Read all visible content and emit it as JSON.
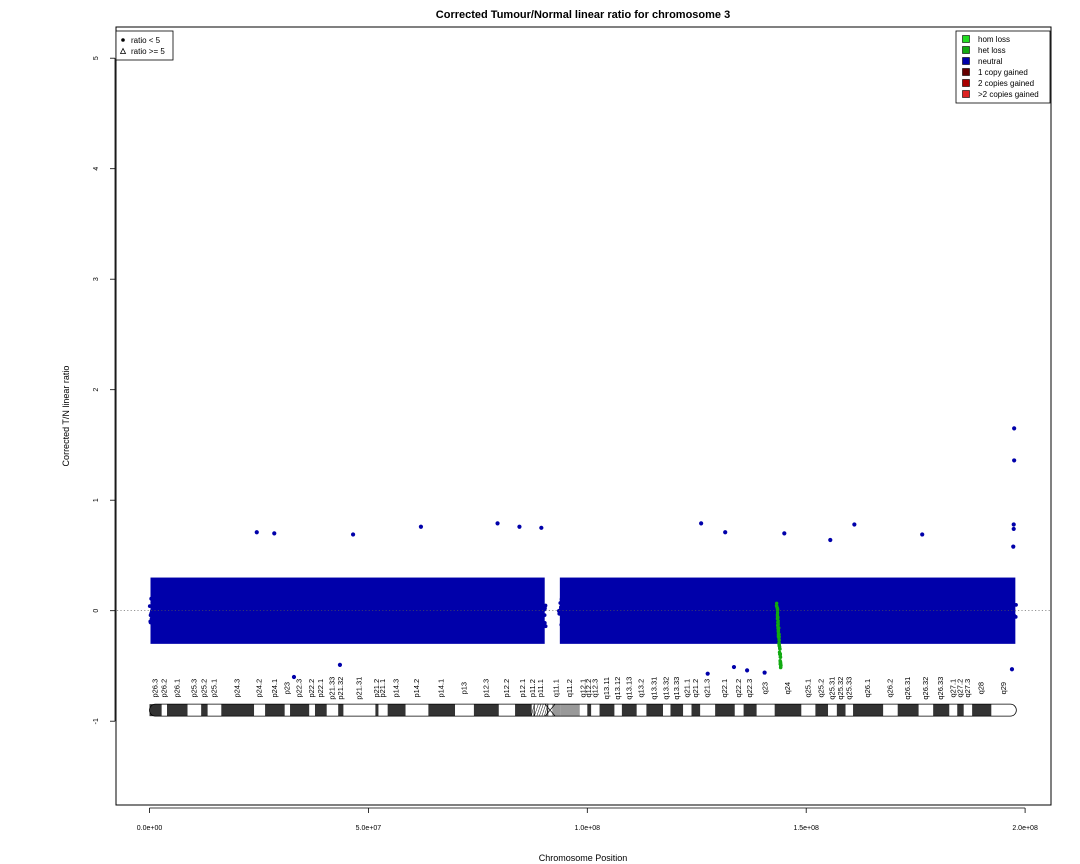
{
  "chart_data": {
    "type": "scatter",
    "title": "Corrected Tumour/Normal linear ratio for chromosome  3",
    "xlabel": "Chromosome Position",
    "ylabel": "Corrected T/N linear ratio",
    "xlim": [
      0,
      205000000
    ],
    "ylim": [
      -1.8,
      5.3
    ],
    "x_ticks": [
      0,
      50000000,
      100000000,
      150000000,
      200000000
    ],
    "x_tick_labels": [
      "0.0e+00",
      "5.0e+07",
      "1.0e+08",
      "1.5e+08",
      "2.0e+08"
    ],
    "y_ticks": [
      -1,
      0,
      1,
      2,
      3,
      4,
      5
    ],
    "y_tick_labels": [
      "-1",
      "0",
      "1",
      "2",
      "3",
      "4",
      "5"
    ],
    "reference_line_y": 0,
    "point_legend": {
      "position": "top-left",
      "entries": [
        {
          "symbol": "dot",
          "label": "ratio < 5"
        },
        {
          "symbol": "triangle",
          "label": "ratio >= 5"
        }
      ]
    },
    "color_legend": {
      "position": "top-right",
      "entries": [
        {
          "label": "hom loss",
          "color": "#22DD22"
        },
        {
          "label": "het loss",
          "color": "#11AA11"
        },
        {
          "label": "neutral",
          "color": "#0000AA"
        },
        {
          "label": "1 copy gained",
          "color": "#660000"
        },
        {
          "label": "2 copies gained",
          "color": "#AA0000"
        },
        {
          "label": ">2 copies gained",
          "color": "#DD2222"
        }
      ]
    },
    "series": [
      {
        "category": "neutral",
        "color": "#0000AA",
        "segments": [
          {
            "x_start": 0,
            "x_end": 90500000,
            "y_center": 0,
            "y_spread": [
              -0.45,
              0.55
            ]
          },
          {
            "x_start": 93500000,
            "x_end": 198000000,
            "y_center": 0,
            "y_spread": [
              -0.45,
              0.55
            ]
          }
        ],
        "outliers": [
          {
            "x": 197500000,
            "y": 1.65
          },
          {
            "x": 197500000,
            "y": 1.36
          },
          {
            "x": 197400000,
            "y": 0.78
          },
          {
            "x": 197400000,
            "y": 0.74
          },
          {
            "x": 197300000,
            "y": 0.58
          },
          {
            "x": 24500000,
            "y": 0.71
          },
          {
            "x": 28500000,
            "y": 0.7
          },
          {
            "x": 46500000,
            "y": 0.69
          },
          {
            "x": 62000000,
            "y": 0.76
          },
          {
            "x": 79500000,
            "y": 0.79
          },
          {
            "x": 84500000,
            "y": 0.76
          },
          {
            "x": 89500000,
            "y": 0.75
          },
          {
            "x": 126000000,
            "y": 0.79
          },
          {
            "x": 131500000,
            "y": 0.71
          },
          {
            "x": 145000000,
            "y": 0.7
          },
          {
            "x": 155500000,
            "y": 0.64
          },
          {
            "x": 161000000,
            "y": 0.78
          },
          {
            "x": 176500000,
            "y": 0.69
          },
          {
            "x": 33000000,
            "y": -0.6
          },
          {
            "x": 43500000,
            "y": -0.49
          },
          {
            "x": 127500000,
            "y": -0.57
          },
          {
            "x": 133500000,
            "y": -0.51
          },
          {
            "x": 136500000,
            "y": -0.54
          },
          {
            "x": 140500000,
            "y": -0.56
          },
          {
            "x": 197000000,
            "y": -0.53
          }
        ]
      },
      {
        "category": "het loss",
        "color": "#11AA11",
        "x_start": 143300000,
        "x_end": 144200000,
        "y_range": [
          -0.52,
          0.05
        ]
      }
    ],
    "ideogram": {
      "y": -0.9,
      "centromere_x": 91500000,
      "bands": [
        {
          "name": "p26.3",
          "start": 0,
          "end": 2800000,
          "stain": "gpos"
        },
        {
          "name": "p26.2",
          "start": 2800000,
          "end": 4000000,
          "stain": "gneg"
        },
        {
          "name": "p26.1",
          "start": 4000000,
          "end": 8700000,
          "stain": "gpos"
        },
        {
          "name": "p25.3",
          "start": 8700000,
          "end": 11800000,
          "stain": "gneg"
        },
        {
          "name": "p25.2",
          "start": 11800000,
          "end": 13300000,
          "stain": "gpos"
        },
        {
          "name": "p25.1",
          "start": 13300000,
          "end": 16400000,
          "stain": "gneg"
        },
        {
          "name": "p24.3",
          "start": 16400000,
          "end": 23900000,
          "stain": "gpos"
        },
        {
          "name": "p24.2",
          "start": 23900000,
          "end": 26400000,
          "stain": "gneg"
        },
        {
          "name": "p24.1",
          "start": 26400000,
          "end": 30900000,
          "stain": "gpos"
        },
        {
          "name": "p23",
          "start": 30900000,
          "end": 32100000,
          "stain": "gneg"
        },
        {
          "name": "p22.3",
          "start": 32100000,
          "end": 36500000,
          "stain": "gpos"
        },
        {
          "name": "p22.2",
          "start": 36500000,
          "end": 37800000,
          "stain": "gneg"
        },
        {
          "name": "p22.1",
          "start": 37800000,
          "end": 40500000,
          "stain": "gpos"
        },
        {
          "name": "p21.33",
          "start": 40500000,
          "end": 43100000,
          "stain": "gneg"
        },
        {
          "name": "p21.32",
          "start": 43100000,
          "end": 44300000,
          "stain": "gpos"
        },
        {
          "name": "p21.31",
          "start": 44300000,
          "end": 51600000,
          "stain": "gneg"
        },
        {
          "name": "p21.2",
          "start": 51600000,
          "end": 52300000,
          "stain": "gpos"
        },
        {
          "name": "p21.1",
          "start": 52300000,
          "end": 54400000,
          "stain": "gneg"
        },
        {
          "name": "p14.3",
          "start": 54400000,
          "end": 58500000,
          "stain": "gpos"
        },
        {
          "name": "p14.2",
          "start": 58500000,
          "end": 63700000,
          "stain": "gneg"
        },
        {
          "name": "p14.1",
          "start": 63700000,
          "end": 69800000,
          "stain": "gpos"
        },
        {
          "name": "p13",
          "start": 69800000,
          "end": 74100000,
          "stain": "gneg"
        },
        {
          "name": "p12.3",
          "start": 74100000,
          "end": 79800000,
          "stain": "gpos"
        },
        {
          "name": "p12.2",
          "start": 79800000,
          "end": 83500000,
          "stain": "gneg"
        },
        {
          "name": "p12.1",
          "start": 83500000,
          "end": 87200000,
          "stain": "gpos"
        },
        {
          "name": "p11.2",
          "start": 87200000,
          "end": 87900000,
          "stain": "stalk"
        },
        {
          "name": "p11.1",
          "start": 87900000,
          "end": 91000000,
          "stain": "stalk"
        },
        {
          "name": "q11.1",
          "start": 92000000,
          "end": 93900000,
          "stain": "acen"
        },
        {
          "name": "q11.2",
          "start": 93900000,
          "end": 98300000,
          "stain": "gvar"
        },
        {
          "name": "q12.1",
          "start": 98300000,
          "end": 100000000,
          "stain": "gneg"
        },
        {
          "name": "q12.2",
          "start": 100000000,
          "end": 100900000,
          "stain": "gpos"
        },
        {
          "name": "q12.3",
          "start": 100900000,
          "end": 102800000,
          "stain": "gneg"
        },
        {
          "name": "q13.11",
          "start": 102800000,
          "end": 106200000,
          "stain": "gpos"
        },
        {
          "name": "q13.12",
          "start": 106200000,
          "end": 107900000,
          "stain": "gneg"
        },
        {
          "name": "q13.13",
          "start": 107900000,
          "end": 111300000,
          "stain": "gpos"
        },
        {
          "name": "q13.2",
          "start": 111300000,
          "end": 113500000,
          "stain": "gneg"
        },
        {
          "name": "q13.31",
          "start": 113500000,
          "end": 117300000,
          "stain": "gpos"
        },
        {
          "name": "q13.32",
          "start": 117300000,
          "end": 119000000,
          "stain": "gneg"
        },
        {
          "name": "q13.33",
          "start": 119000000,
          "end": 121900000,
          "stain": "gpos"
        },
        {
          "name": "q21.1",
          "start": 121900000,
          "end": 123800000,
          "stain": "gneg"
        },
        {
          "name": "q21.2",
          "start": 123800000,
          "end": 125800000,
          "stain": "gpos"
        },
        {
          "name": "q21.3",
          "start": 125800000,
          "end": 129200000,
          "stain": "gneg"
        },
        {
          "name": "q22.1",
          "start": 129200000,
          "end": 133700000,
          "stain": "gpos"
        },
        {
          "name": "q22.2",
          "start": 133700000,
          "end": 135700000,
          "stain": "gneg"
        },
        {
          "name": "q22.3",
          "start": 135700000,
          "end": 138700000,
          "stain": "gpos"
        },
        {
          "name": "q23",
          "start": 138700000,
          "end": 142800000,
          "stain": "gneg"
        },
        {
          "name": "q24",
          "start": 142800000,
          "end": 148900000,
          "stain": "gpos"
        },
        {
          "name": "q25.1",
          "start": 148900000,
          "end": 152100000,
          "stain": "gneg"
        },
        {
          "name": "q25.2",
          "start": 152100000,
          "end": 155000000,
          "stain": "gpos"
        },
        {
          "name": "q25.31",
          "start": 155000000,
          "end": 157000000,
          "stain": "gneg"
        },
        {
          "name": "q25.32",
          "start": 157000000,
          "end": 159000000,
          "stain": "gpos"
        },
        {
          "name": "q25.33",
          "start": 159000000,
          "end": 160700000,
          "stain": "gneg"
        },
        {
          "name": "q26.1",
          "start": 160700000,
          "end": 167600000,
          "stain": "gpos"
        },
        {
          "name": "q26.2",
          "start": 167600000,
          "end": 170900000,
          "stain": "gneg"
        },
        {
          "name": "q26.31",
          "start": 170900000,
          "end": 175700000,
          "stain": "gpos"
        },
        {
          "name": "q26.32",
          "start": 175700000,
          "end": 179000000,
          "stain": "gneg"
        },
        {
          "name": "q26.33",
          "start": 179000000,
          "end": 182700000,
          "stain": "gpos"
        },
        {
          "name": "q27.1",
          "start": 182700000,
          "end": 184500000,
          "stain": "gneg"
        },
        {
          "name": "q27.2",
          "start": 184500000,
          "end": 186000000,
          "stain": "gpos"
        },
        {
          "name": "q27.3",
          "start": 186000000,
          "end": 187900000,
          "stain": "gneg"
        },
        {
          "name": "q28",
          "start": 187900000,
          "end": 192300000,
          "stain": "gpos"
        },
        {
          "name": "q29",
          "start": 192300000,
          "end": 198000000,
          "stain": "gneg"
        }
      ]
    }
  }
}
